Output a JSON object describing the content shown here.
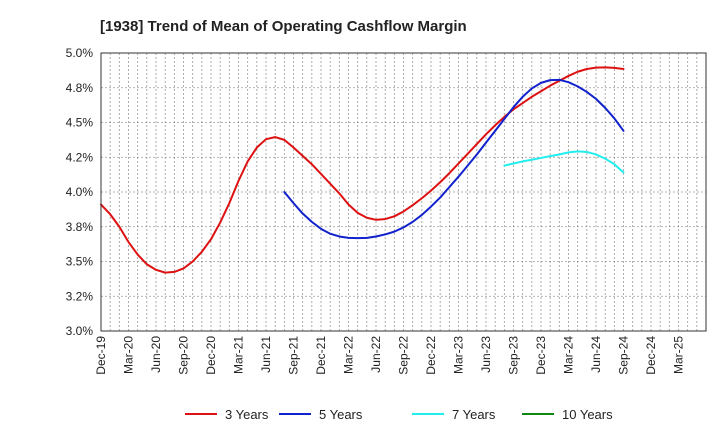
{
  "chart_data": {
    "type": "line",
    "title": "[1938]  Trend of Mean of Operating Cashflow Margin",
    "xlabel": "",
    "ylabel": "",
    "ylim": [
      3.0,
      5.0
    ],
    "y_ticks": [
      3.0,
      3.25,
      3.5,
      3.75,
      4.0,
      4.25,
      4.5,
      4.75,
      5.0
    ],
    "y_tick_labels": [
      "3.0%",
      "3.2%",
      "3.5%",
      "3.8%",
      "4.0%",
      "4.2%",
      "4.5%",
      "4.8%",
      "5.0%"
    ],
    "x_tick_labels": [
      "Dec-19",
      "Mar-20",
      "Jun-20",
      "Sep-20",
      "Dec-20",
      "Mar-21",
      "Jun-21",
      "Sep-21",
      "Dec-21",
      "Mar-22",
      "Jun-22",
      "Sep-22",
      "Dec-22",
      "Mar-23",
      "Jun-23",
      "Sep-23",
      "Dec-23",
      "Mar-24",
      "Jun-24",
      "Sep-24",
      "Dec-24",
      "Mar-25"
    ],
    "x_range_months": [
      0,
      66
    ],
    "x_unit": "months since Dec-19",
    "grid": true,
    "legend_position": "bottom",
    "series": [
      {
        "name": "3 Years",
        "color": "#dd1111",
        "x": [
          0,
          1,
          2,
          3,
          4,
          5,
          6,
          7,
          8,
          9,
          10,
          11,
          12,
          13,
          14,
          15,
          16,
          17,
          18,
          19,
          20,
          21,
          22,
          23,
          24,
          25,
          26,
          27,
          28,
          29,
          30,
          31,
          32,
          33,
          34,
          35,
          36,
          37,
          38,
          39,
          40,
          41,
          42,
          43,
          44,
          45,
          46,
          47,
          48,
          49,
          50,
          51,
          52,
          53,
          54,
          55,
          56,
          57
        ],
        "values": [
          3.91,
          3.84,
          3.75,
          3.64,
          3.55,
          3.48,
          3.44,
          3.42,
          3.425,
          3.45,
          3.5,
          3.57,
          3.66,
          3.78,
          3.92,
          4.08,
          4.22,
          4.32,
          4.38,
          4.395,
          4.375,
          4.32,
          4.26,
          4.2,
          4.13,
          4.06,
          3.99,
          3.91,
          3.85,
          3.815,
          3.8,
          3.805,
          3.825,
          3.86,
          3.905,
          3.955,
          4.01,
          4.07,
          4.135,
          4.205,
          4.275,
          4.345,
          4.415,
          4.48,
          4.54,
          4.595,
          4.64,
          4.685,
          4.725,
          4.765,
          4.8,
          4.835,
          4.865,
          4.885,
          4.895,
          4.897,
          4.893,
          4.885
        ]
      },
      {
        "name": "5 Years",
        "color": "#1122cc",
        "x": [
          20,
          21,
          22,
          23,
          24,
          25,
          26,
          27,
          28,
          29,
          30,
          31,
          32,
          33,
          34,
          35,
          36,
          37,
          38,
          39,
          40,
          41,
          42,
          43,
          44,
          45,
          46,
          47,
          48,
          49,
          50,
          51,
          52,
          53,
          54,
          55,
          56,
          57
        ],
        "values": [
          4.0,
          3.92,
          3.845,
          3.785,
          3.735,
          3.7,
          3.68,
          3.67,
          3.668,
          3.67,
          3.68,
          3.695,
          3.715,
          3.745,
          3.785,
          3.835,
          3.895,
          3.96,
          4.035,
          4.11,
          4.19,
          4.27,
          4.355,
          4.44,
          4.525,
          4.61,
          4.685,
          4.745,
          4.785,
          4.805,
          4.807,
          4.79,
          4.76,
          4.72,
          4.67,
          4.605,
          4.53,
          4.44
        ]
      },
      {
        "name": "7 Years",
        "color": "#22eeee",
        "x": [
          44,
          45,
          46,
          47,
          48,
          49,
          50,
          51,
          52,
          53,
          54,
          55,
          56,
          57
        ],
        "values": [
          4.19,
          4.205,
          4.22,
          4.232,
          4.245,
          4.258,
          4.27,
          4.285,
          4.292,
          4.288,
          4.27,
          4.24,
          4.2,
          4.14
        ]
      },
      {
        "name": "10 Years",
        "color": "#118811",
        "x": [],
        "values": []
      }
    ]
  }
}
